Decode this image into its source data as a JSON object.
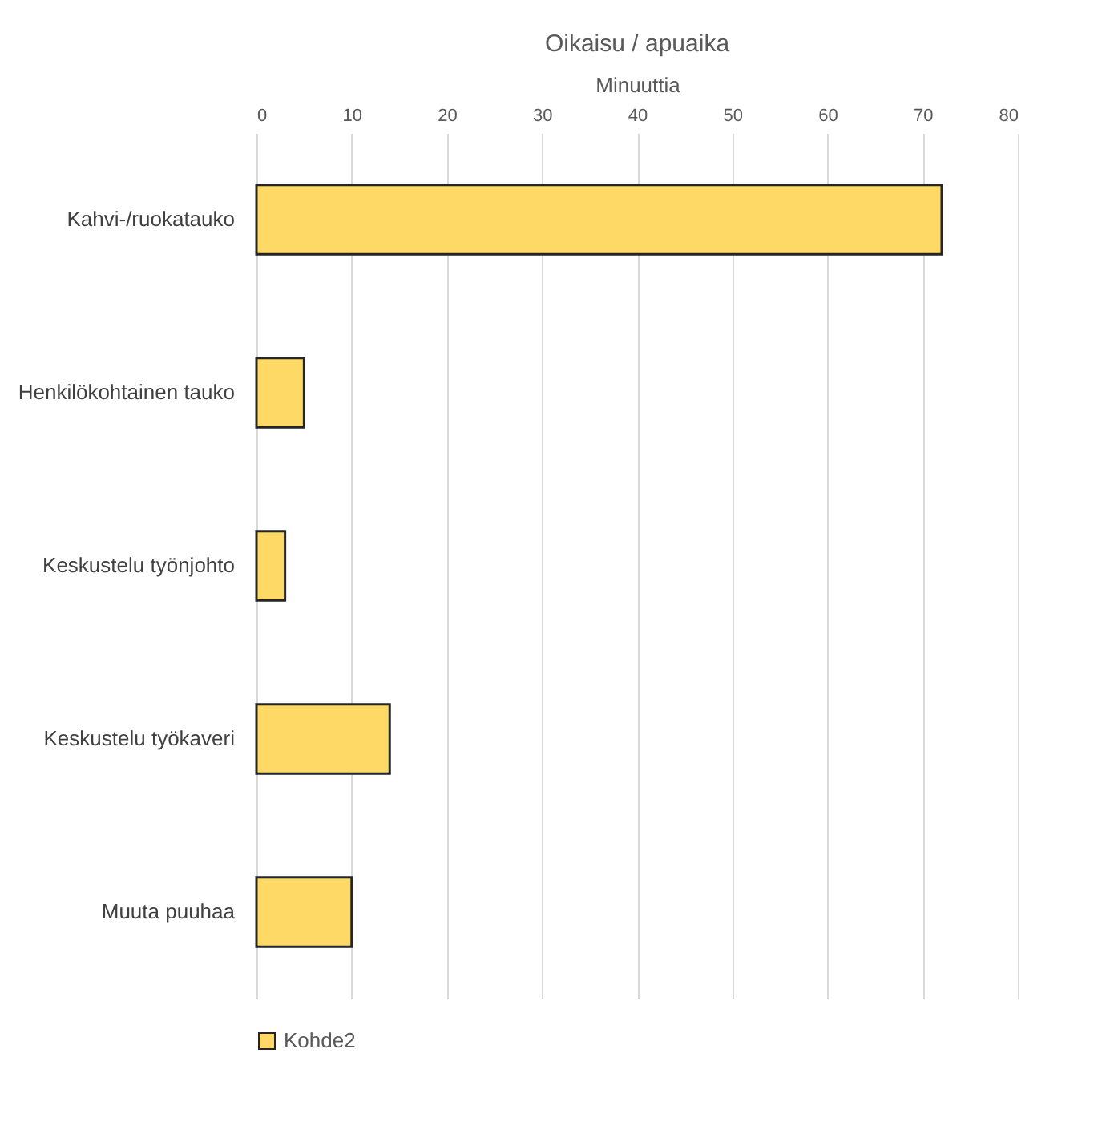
{
  "chart_data": {
    "type": "bar",
    "title": "Oikaisu / apuaika",
    "xlabel": "Minuuttia",
    "orientation": "horizontal",
    "categories": [
      "Kahvi-/ruokatauko",
      "Henkilökohtainen tauko",
      "Keskustelu työnjohto",
      "Keskustelu työkaveri",
      "Muuta puuhaa"
    ],
    "series": [
      {
        "name": "Kohde2",
        "color": "#ffd966",
        "values": [
          72,
          5,
          3,
          14,
          10
        ]
      }
    ],
    "xlim": [
      0,
      80
    ],
    "xticks": [
      0,
      10,
      20,
      30,
      40,
      50,
      60,
      70,
      80
    ],
    "grid": "x",
    "legend": "bottom"
  }
}
